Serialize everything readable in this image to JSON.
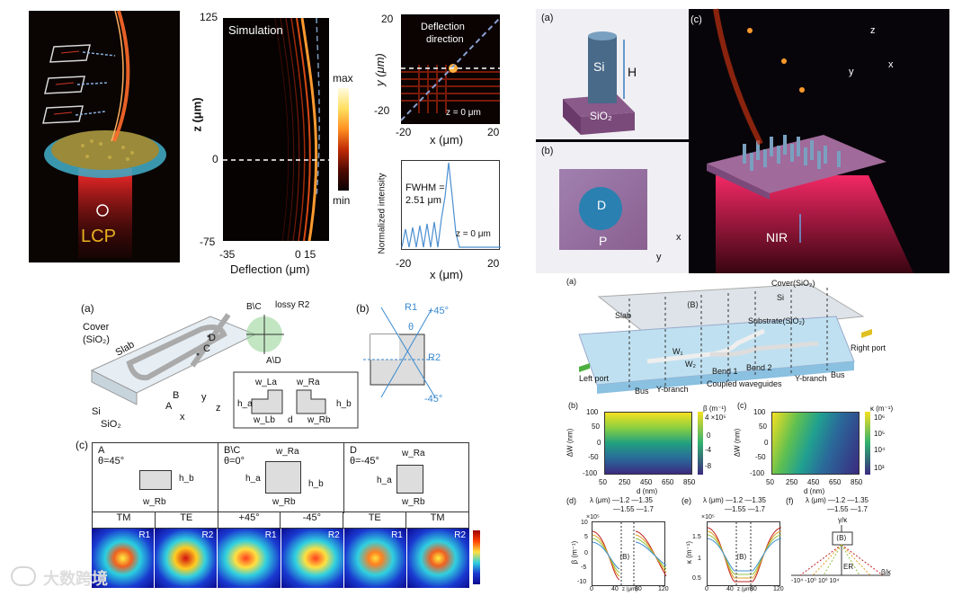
{
  "panelA": {
    "lcp": "LCP"
  },
  "sim": {
    "title": "Simulation",
    "ytop": "125",
    "ymid": "0",
    "ybot": "-75",
    "ylabel": "z (μm)",
    "xl": "-35",
    "xr": "0  15",
    "xlabel": "Deflection (μm)",
    "cmax": "max",
    "cmin": "min"
  },
  "defl": {
    "title1": "Deflection",
    "title2": "direction",
    "y20": "20",
    "yn20": "-20",
    "ylabel": "y (μm)",
    "zlabel": "z = 0 μm",
    "x1": "-20",
    "x2": "20",
    "xlabel": "x (μm)"
  },
  "norm": {
    "fwhm": "FWHM =",
    "fwhmv": "2.51 μm",
    "ylabel": "Normalized intensity",
    "zlabel": "z = 0 μm",
    "x1": "-20",
    "x2": "20",
    "xlabel": "x (μm)"
  },
  "right": {
    "a": "(a)",
    "b": "(b)",
    "c": "(c)",
    "si": "Si",
    "h": "H",
    "sio2": "SiO₂",
    "d": "D",
    "p": "P",
    "nir": "NIR",
    "ax_x": "x",
    "ax_y": "y",
    "ax_z": "z"
  },
  "bl": {
    "a": "(a)",
    "b": "(b)",
    "c": "(c)",
    "cover": "Cover",
    "coversio2": "(SiO₂)",
    "slab": "Slab",
    "si": "Si",
    "sio2": "SiO₂",
    "ptA": "A",
    "ptB": "B",
    "ptC": "C",
    "ptD": "D",
    "bc": "B\\C",
    "lossy": "lossy R2",
    "ad": "A\\D",
    "wLa": "w_La",
    "wRa": "w_Ra",
    "ha": "h_a",
    "hb": "h_b",
    "wLb": "w_Lb",
    "d": "d",
    "wRb": "w_Rb",
    "r1": "R1",
    "r2": "R2",
    "p45": "+45°",
    "m45": "-45°",
    "theta": "θ",
    "x": "x",
    "y": "y",
    "z": "z"
  },
  "table": {
    "c1a": "A",
    "c1b": "θ=45°",
    "c2a": "B\\C",
    "c2b": "θ=0°",
    "c3a": "D",
    "c3b": "θ=-45°",
    "wRb": "w_Rb",
    "wRa": "w_Ra",
    "ha": "h_a",
    "hb": "h_b",
    "modes": [
      "TM",
      "TE",
      "+45°",
      "-45°",
      "TE",
      "TM"
    ],
    "rs": [
      "R1",
      "R2",
      "R1",
      "R2",
      "R1",
      "R2"
    ]
  },
  "wg": {
    "a": "(a)",
    "cover": "Cover(SiO₂)",
    "si": "Si",
    "slab": "Slab",
    "substrate": "Substrate(SiO₂)",
    "left": "Left port",
    "right": "Right port",
    "bus": "Bus",
    "ybr": "Y-branch",
    "coupled": "Coupled waveguides",
    "ybr2": "Y-branch",
    "bus2": "Bus",
    "bend1": "Bend 1",
    "bend2": "Bend 2",
    "w1": "W₁",
    "w2": "W₂",
    "bb": "⟨B⟩"
  },
  "hmB": {
    "label": "(b)",
    "cbtitle": "β (m⁻¹)",
    "cbexp": "4 ×10⁵",
    "cbt": [
      "0",
      "-4",
      "-8"
    ],
    "yt": [
      "100",
      "50",
      "0",
      "-50",
      "-100"
    ],
    "ylabel": "ΔW (nm)",
    "xt": [
      "50",
      "250",
      "450",
      "650",
      "850"
    ],
    "xlabel": "d (nm)"
  },
  "hmC": {
    "label": "(c)",
    "cbtitle": "κ (m⁻¹)",
    "cbt": [
      "10⁶",
      "10⁵",
      "10⁴",
      "10³"
    ],
    "yt": [
      "100",
      "50",
      "0",
      "-50",
      "-100"
    ],
    "ylabel": "ΔW (nm)",
    "xt": [
      "50",
      "250",
      "450",
      "650",
      "850"
    ],
    "xlabel": "d (nm)"
  },
  "lineD": {
    "label": "(d)",
    "leg1": "λ (μm) —1.2  —1.35",
    "leg2": "—1.55 —1.7",
    "exp": "×10⁵",
    "ylabel": "β (m⁻¹)",
    "yt": [
      "10",
      "5",
      "0",
      "-5",
      "-10"
    ],
    "xt": [
      "0",
      "40",
      "80",
      "120"
    ],
    "xlabel": "z (μm)",
    "bb": "⟨B⟩"
  },
  "lineE": {
    "label": "(e)",
    "leg1": "λ (μm) —1.2  —1.35",
    "leg2": "—1.55 —1.7",
    "exp": "×10⁵",
    "ylabel": "κ (m⁻¹)",
    "yt": [
      "0.5",
      "1",
      "1.5"
    ],
    "xt": [
      "0",
      "40",
      "80",
      "120"
    ],
    "xlabel": "z (μm)",
    "bb": "⟨B⟩"
  },
  "lineF": {
    "label": "(f)",
    "leg1": "λ (μm) —1.2  —1.35",
    "leg2": "—1.55 —1.7",
    "ytop": "γ/κ",
    "xlab": "β/κ",
    "bb": "⟨B⟩",
    "er": "ER",
    "xt": "-10⁴ -10⁰  10⁰ 10⁴"
  },
  "watermark": "大数跨境",
  "chart_data": [
    {
      "type": "heatmap",
      "title": "",
      "xlabel": "d (nm)",
      "ylabel": "ΔW (nm)",
      "xlim": [
        50,
        850
      ],
      "ylim": [
        -100,
        100
      ],
      "colorbar": "β (m⁻¹)",
      "colorbar_range": [
        -800000.0,
        400000.0
      ]
    },
    {
      "type": "heatmap",
      "title": "",
      "xlabel": "d (nm)",
      "ylabel": "ΔW (nm)",
      "xlim": [
        50,
        850
      ],
      "ylim": [
        -100,
        100
      ],
      "colorbar": "κ (m⁻¹)",
      "colorbar_scale": "log",
      "colorbar_range": [
        1000.0,
        1000000.0
      ]
    },
    {
      "type": "line",
      "xlabel": "z (μm)",
      "ylabel": "β (m⁻¹)",
      "xlim": [
        0,
        120
      ],
      "ylim": [
        -10,
        10
      ],
      "series": [
        {
          "name": "1.2"
        },
        {
          "name": "1.35"
        },
        {
          "name": "1.55"
        },
        {
          "name": "1.7"
        }
      ]
    },
    {
      "type": "line",
      "xlabel": "z (μm)",
      "ylabel": "κ (m⁻¹)",
      "xlim": [
        0,
        120
      ],
      "series": [
        {
          "name": "1.2"
        },
        {
          "name": "1.35"
        },
        {
          "name": "1.55"
        },
        {
          "name": "1.7"
        }
      ]
    }
  ]
}
